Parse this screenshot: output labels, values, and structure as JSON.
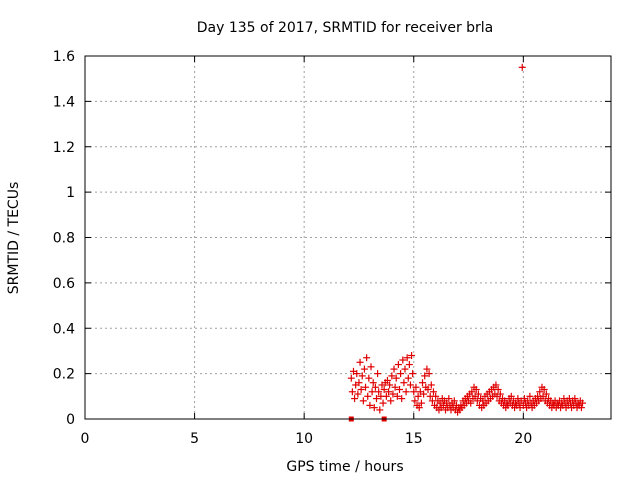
{
  "chart_data": {
    "type": "scatter",
    "title": "Day 135 of 2017, SRMTID for receiver brla",
    "xlabel": "GPS time / hours",
    "ylabel": "SRMTID / TECUs",
    "xlim": [
      0,
      24
    ],
    "ylim": [
      0,
      1.6
    ],
    "grid": true,
    "xticks": [
      0,
      5,
      10,
      15,
      20
    ],
    "xtick_labels": [
      "0",
      "5",
      "10",
      "15",
      "20"
    ],
    "yticks": [
      0,
      0.2,
      0.4,
      0.6,
      0.8,
      1.0,
      1.2,
      1.4,
      1.6
    ],
    "ytick_labels": [
      "0",
      "0.2",
      "0.4",
      "0.6",
      "0.8",
      "1",
      "1.2",
      "1.4",
      "1.6"
    ],
    "colors": {
      "marker": "#e00000",
      "grid": "#a0a0a0",
      "axis": "#000000"
    },
    "series": [
      {
        "name": "SRMTID",
        "marker": "plus",
        "points": [
          [
            12.15,
            0.18
          ],
          [
            12.2,
            0.12
          ],
          [
            12.25,
            0.21
          ],
          [
            12.3,
            0.09
          ],
          [
            12.35,
            0.15
          ],
          [
            12.4,
            0.2
          ],
          [
            12.45,
            0.11
          ],
          [
            12.5,
            0.16
          ],
          [
            12.55,
            0.25
          ],
          [
            12.6,
            0.13
          ],
          [
            12.65,
            0.19
          ],
          [
            12.7,
            0.08
          ],
          [
            12.75,
            0.22
          ],
          [
            12.8,
            0.14
          ],
          [
            12.85,
            0.27
          ],
          [
            12.9,
            0.1
          ],
          [
            12.95,
            0.18
          ],
          [
            13.0,
            0.06
          ],
          [
            13.05,
            0.23
          ],
          [
            13.1,
            0.12
          ],
          [
            13.15,
            0.16
          ],
          [
            13.2,
            0.05
          ],
          [
            13.25,
            0.14
          ],
          [
            13.3,
            0.09
          ],
          [
            13.35,
            0.2
          ],
          [
            13.4,
            0.12
          ],
          [
            13.45,
            0.04
          ],
          [
            13.5,
            0.1
          ],
          [
            13.55,
            0.15
          ],
          [
            13.6,
            0.07
          ],
          [
            13.65,
            0.13
          ],
          [
            13.7,
            0.16
          ],
          [
            13.75,
            0.1
          ],
          [
            13.8,
            0.17
          ],
          [
            13.85,
            0.12
          ],
          [
            13.9,
            0.15
          ],
          [
            13.95,
            0.08
          ],
          [
            14.0,
            0.19
          ],
          [
            14.05,
            0.11
          ],
          [
            14.1,
            0.22
          ],
          [
            14.15,
            0.14
          ],
          [
            14.2,
            0.18
          ],
          [
            14.25,
            0.1
          ],
          [
            14.3,
            0.24
          ],
          [
            14.35,
            0.13
          ],
          [
            14.4,
            0.2
          ],
          [
            14.45,
            0.09
          ],
          [
            14.5,
            0.26
          ],
          [
            14.55,
            0.16
          ],
          [
            14.6,
            0.22
          ],
          [
            14.65,
            0.12
          ],
          [
            14.7,
            0.27
          ],
          [
            14.75,
            0.18
          ],
          [
            14.8,
            0.24
          ],
          [
            14.85,
            0.15
          ],
          [
            14.9,
            0.28
          ],
          [
            14.95,
            0.2
          ],
          [
            15.0,
            0.12
          ],
          [
            15.05,
            0.08
          ],
          [
            15.1,
            0.14
          ],
          [
            15.15,
            0.06
          ],
          [
            15.2,
            0.1
          ],
          [
            15.25,
            0.05
          ],
          [
            15.3,
            0.12
          ],
          [
            15.35,
            0.07
          ],
          [
            15.4,
            0.16
          ],
          [
            15.45,
            0.11
          ],
          [
            15.5,
            0.19
          ],
          [
            15.55,
            0.14
          ],
          [
            15.6,
            0.22
          ],
          [
            15.65,
            0.13
          ],
          [
            15.7,
            0.2
          ],
          [
            15.75,
            0.1
          ],
          [
            15.8,
            0.15
          ],
          [
            15.85,
            0.08
          ],
          [
            15.9,
            0.12
          ],
          [
            15.95,
            0.06
          ],
          [
            16.0,
            0.1
          ],
          [
            16.05,
            0.05
          ],
          [
            16.1,
            0.08
          ],
          [
            16.15,
            0.04
          ],
          [
            16.2,
            0.07
          ],
          [
            16.25,
            0.05
          ],
          [
            16.3,
            0.09
          ],
          [
            16.35,
            0.06
          ],
          [
            16.4,
            0.08
          ],
          [
            16.45,
            0.04
          ],
          [
            16.5,
            0.07
          ],
          [
            16.55,
            0.05
          ],
          [
            16.6,
            0.09
          ],
          [
            16.65,
            0.06
          ],
          [
            16.7,
            0.04
          ],
          [
            16.75,
            0.07
          ],
          [
            16.8,
            0.05
          ],
          [
            16.85,
            0.08
          ],
          [
            16.9,
            0.04
          ],
          [
            16.95,
            0.06
          ],
          [
            17.0,
            0.03
          ],
          [
            17.05,
            0.05
          ],
          [
            17.1,
            0.04
          ],
          [
            17.15,
            0.06
          ],
          [
            17.2,
            0.05
          ],
          [
            17.25,
            0.08
          ],
          [
            17.3,
            0.06
          ],
          [
            17.35,
            0.09
          ],
          [
            17.4,
            0.07
          ],
          [
            17.45,
            0.1
          ],
          [
            17.5,
            0.08
          ],
          [
            17.55,
            0.11
          ],
          [
            17.6,
            0.07
          ],
          [
            17.65,
            0.12
          ],
          [
            17.7,
            0.09
          ],
          [
            17.75,
            0.14
          ],
          [
            17.8,
            0.1
          ],
          [
            17.85,
            0.13
          ],
          [
            17.9,
            0.08
          ],
          [
            17.95,
            0.11
          ],
          [
            18.0,
            0.06
          ],
          [
            18.05,
            0.09
          ],
          [
            18.1,
            0.05
          ],
          [
            18.15,
            0.08
          ],
          [
            18.2,
            0.06
          ],
          [
            18.25,
            0.1
          ],
          [
            18.3,
            0.07
          ],
          [
            18.35,
            0.11
          ],
          [
            18.4,
            0.08
          ],
          [
            18.45,
            0.12
          ],
          [
            18.5,
            0.09
          ],
          [
            18.55,
            0.13
          ],
          [
            18.6,
            0.1
          ],
          [
            18.65,
            0.14
          ],
          [
            18.7,
            0.11
          ],
          [
            18.75,
            0.15
          ],
          [
            18.8,
            0.1
          ],
          [
            18.85,
            0.13
          ],
          [
            18.9,
            0.08
          ],
          [
            18.95,
            0.11
          ],
          [
            19.0,
            0.07
          ],
          [
            19.05,
            0.09
          ],
          [
            19.1,
            0.06
          ],
          [
            19.15,
            0.08
          ],
          [
            19.2,
            0.05
          ],
          [
            19.25,
            0.07
          ],
          [
            19.3,
            0.06
          ],
          [
            19.35,
            0.09
          ],
          [
            19.4,
            0.07
          ],
          [
            19.45,
            0.1
          ],
          [
            19.5,
            0.06
          ],
          [
            19.55,
            0.08
          ],
          [
            19.6,
            0.05
          ],
          [
            19.65,
            0.07
          ],
          [
            19.7,
            0.06
          ],
          [
            19.75,
            0.09
          ],
          [
            19.8,
            0.07
          ],
          [
            19.85,
            0.05
          ],
          [
            19.9,
            0.08
          ],
          [
            19.95,
            1.55
          ],
          [
            20.0,
            0.06
          ],
          [
            20.05,
            0.09
          ],
          [
            20.1,
            0.07
          ],
          [
            20.15,
            0.05
          ],
          [
            20.2,
            0.08
          ],
          [
            20.25,
            0.06
          ],
          [
            20.3,
            0.1
          ],
          [
            20.35,
            0.07
          ],
          [
            20.4,
            0.05
          ],
          [
            20.45,
            0.08
          ],
          [
            20.5,
            0.06
          ],
          [
            20.55,
            0.09
          ],
          [
            20.6,
            0.07
          ],
          [
            20.65,
            0.1
          ],
          [
            20.7,
            0.08
          ],
          [
            20.75,
            0.12
          ],
          [
            20.8,
            0.09
          ],
          [
            20.85,
            0.14
          ],
          [
            20.9,
            0.1
          ],
          [
            20.95,
            0.13
          ],
          [
            21.0,
            0.08
          ],
          [
            21.05,
            0.11
          ],
          [
            21.1,
            0.07
          ],
          [
            21.15,
            0.09
          ],
          [
            21.2,
            0.06
          ],
          [
            21.25,
            0.08
          ],
          [
            21.3,
            0.05
          ],
          [
            21.35,
            0.07
          ],
          [
            21.4,
            0.06
          ],
          [
            21.45,
            0.08
          ],
          [
            21.5,
            0.05
          ],
          [
            21.55,
            0.07
          ],
          [
            21.6,
            0.06
          ],
          [
            21.65,
            0.08
          ],
          [
            21.7,
            0.05
          ],
          [
            21.75,
            0.07
          ],
          [
            21.8,
            0.06
          ],
          [
            21.85,
            0.09
          ],
          [
            21.9,
            0.07
          ],
          [
            21.95,
            0.05
          ],
          [
            22.0,
            0.08
          ],
          [
            22.05,
            0.06
          ],
          [
            22.1,
            0.09
          ],
          [
            22.15,
            0.07
          ],
          [
            22.2,
            0.05
          ],
          [
            22.25,
            0.08
          ],
          [
            22.3,
            0.06
          ],
          [
            22.35,
            0.09
          ],
          [
            22.4,
            0.07
          ],
          [
            22.45,
            0.05
          ],
          [
            22.5,
            0.07
          ],
          [
            22.55,
            0.06
          ],
          [
            22.6,
            0.08
          ],
          [
            22.65,
            0.05
          ],
          [
            22.7,
            0.07
          ]
        ]
      },
      {
        "name": "zero-markers",
        "marker": "square",
        "points": [
          [
            12.15,
            0
          ],
          [
            13.65,
            0
          ]
        ]
      }
    ]
  }
}
